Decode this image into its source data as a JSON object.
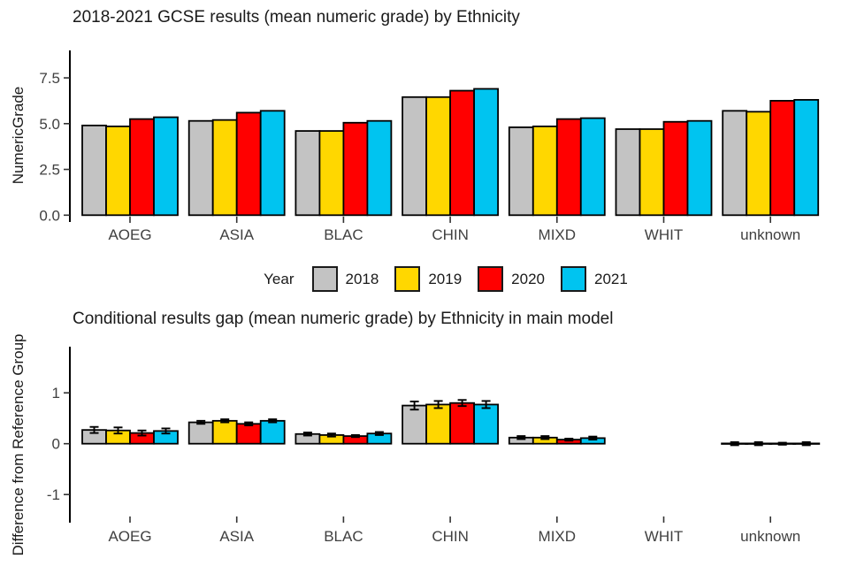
{
  "legend": {
    "title": "Year",
    "items": [
      {
        "label": "2018",
        "color": "#C3C3C3"
      },
      {
        "label": "2019",
        "color": "#FFD700"
      },
      {
        "label": "2020",
        "color": "#FF0000"
      },
      {
        "label": "2021",
        "color": "#00C4F0"
      }
    ]
  },
  "chart_data": [
    {
      "type": "bar",
      "title": "2018-2021 GCSE results (mean numeric grade) by Ethnicity",
      "xlabel": "",
      "ylabel": "NumericGrade",
      "categories": [
        "AOEG",
        "ASIA",
        "BLAC",
        "CHIN",
        "MIXD",
        "WHIT",
        "unknown"
      ],
      "yticks": [
        {
          "value": 0,
          "label": "0.0"
        },
        {
          "value": 2.5,
          "label": "2.5"
        },
        {
          "value": 5,
          "label": "5.0"
        },
        {
          "value": 7.5,
          "label": "7.5"
        }
      ],
      "ylim": [
        0,
        9
      ],
      "grid": false,
      "legend_position": "bottom",
      "series": [
        {
          "name": "2018",
          "color": "#C3C3C3",
          "values": [
            4.9,
            5.15,
            4.6,
            6.45,
            4.8,
            4.7,
            5.7
          ]
        },
        {
          "name": "2019",
          "color": "#FFD700",
          "values": [
            4.85,
            5.2,
            4.6,
            6.45,
            4.85,
            4.7,
            5.65
          ]
        },
        {
          "name": "2020",
          "color": "#FF0000",
          "values": [
            5.25,
            5.6,
            5.05,
            6.8,
            5.25,
            5.1,
            6.25
          ]
        },
        {
          "name": "2021",
          "color": "#00C4F0",
          "values": [
            5.35,
            5.7,
            5.15,
            6.9,
            5.3,
            5.15,
            6.3
          ]
        }
      ]
    },
    {
      "type": "bar",
      "title": "Conditional results gap (mean numeric grade) by Ethnicity in main model",
      "xlabel": "",
      "ylabel": "Difference from Reference Group",
      "categories": [
        "AOEG",
        "ASIA",
        "BLAC",
        "CHIN",
        "MIXD",
        "WHIT",
        "unknown"
      ],
      "yticks": [
        {
          "value": -1,
          "label": "-1"
        },
        {
          "value": 0,
          "label": "0"
        },
        {
          "value": 1,
          "label": "1"
        }
      ],
      "ylim": [
        -1.9,
        1.9
      ],
      "grid": false,
      "series": [
        {
          "name": "2018",
          "color": "#C3C3C3",
          "values": [
            0.27,
            0.42,
            0.19,
            0.75,
            0.12,
            null,
            0
          ],
          "errors": [
            0.06,
            0.03,
            0.03,
            0.08,
            0.03,
            null,
            0.03
          ]
        },
        {
          "name": "2019",
          "color": "#FFD700",
          "values": [
            0.26,
            0.45,
            0.17,
            0.77,
            0.12,
            null,
            0
          ],
          "errors": [
            0.06,
            0.03,
            0.03,
            0.07,
            0.03,
            null,
            0.03
          ]
        },
        {
          "name": "2020",
          "color": "#FF0000",
          "values": [
            0.21,
            0.39,
            0.15,
            0.8,
            0.08,
            null,
            0
          ],
          "errors": [
            0.05,
            0.03,
            0.02,
            0.06,
            0.02,
            null,
            0.02
          ]
        },
        {
          "name": "2021",
          "color": "#00C4F0",
          "values": [
            0.25,
            0.45,
            0.2,
            0.77,
            0.11,
            null,
            0
          ],
          "errors": [
            0.05,
            0.03,
            0.03,
            0.07,
            0.03,
            null,
            0.03
          ]
        }
      ]
    }
  ]
}
